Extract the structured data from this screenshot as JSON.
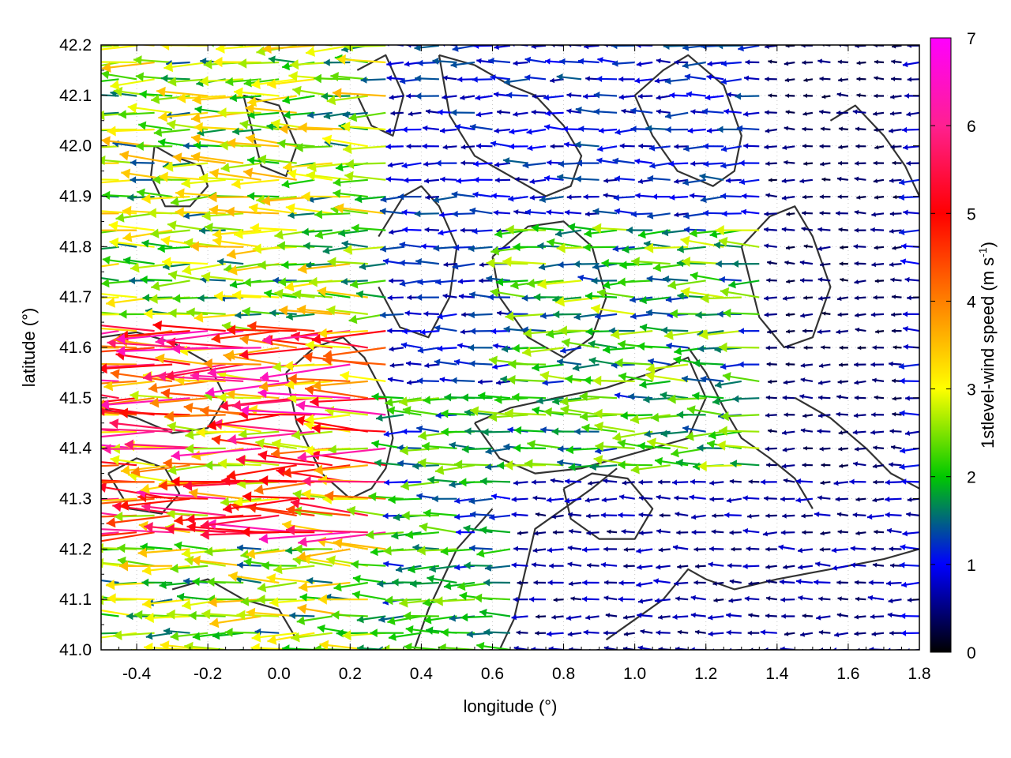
{
  "chart_data": {
    "type": "vector-field",
    "title": "",
    "xlabel": "longitude (°)",
    "ylabel": "latitude (°)",
    "xlim": [
      -0.5,
      1.8
    ],
    "ylim": [
      41.0,
      42.2
    ],
    "xticks": [
      -0.4,
      -0.2,
      0.0,
      0.2,
      0.4,
      0.6,
      0.8,
      1.0,
      1.2,
      1.4,
      1.6,
      1.8
    ],
    "xtick_labels": [
      "-0.4",
      "-0.2",
      "0.0",
      "0.2",
      "0.4",
      "0.6",
      "0.8",
      "1.0",
      "1.2",
      "1.4",
      "1.6",
      "1.8"
    ],
    "yticks": [
      41.0,
      41.1,
      41.2,
      41.3,
      41.4,
      41.5,
      41.6,
      41.7,
      41.8,
      41.9,
      42.0,
      42.1,
      42.2
    ],
    "ytick_labels": [
      "41.0",
      "41.1",
      "41.2",
      "41.3",
      "41.4",
      "41.5",
      "41.6",
      "41.7",
      "41.8",
      "41.9",
      "42.0",
      "42.1",
      "42.2"
    ],
    "grid": true,
    "colorbar": {
      "label_main": "1stlevel-wind speed (m s",
      "label_sup": "-1",
      "label_end": ")",
      "range": [
        0,
        7
      ],
      "ticks": [
        0,
        1,
        2,
        3,
        4,
        5,
        6,
        7
      ],
      "tick_labels": [
        "0",
        "1",
        "2",
        "3",
        "4",
        "5",
        "6",
        "7"
      ],
      "colormap": [
        "#000000",
        "#0000ff",
        "#00c800",
        "#ffff00",
        "#ff8000",
        "#ff0000",
        "#ff00ff"
      ]
    },
    "contour_color": "#333333",
    "vector_summary": {
      "predominant_direction": "westward",
      "regions": [
        {
          "lon": [
            -0.5,
            0.3
          ],
          "lat": [
            41.2,
            41.65
          ],
          "speed": 4.5
        },
        {
          "lon": [
            -0.5,
            0.3
          ],
          "lat": [
            41.65,
            42.2
          ],
          "speed": 2.5
        },
        {
          "lon": [
            -0.5,
            0.3
          ],
          "lat": [
            41.0,
            41.2
          ],
          "speed": 2.5
        },
        {
          "lon": [
            0.3,
            0.7
          ],
          "lat": [
            41.0,
            41.5
          ],
          "speed": 1.8
        },
        {
          "lon": [
            0.3,
            0.7
          ],
          "lat": [
            41.5,
            42.2
          ],
          "speed": 1.0
        },
        {
          "lon": [
            0.7,
            1.4
          ],
          "lat": [
            41.35,
            41.85
          ],
          "speed": 2.0
        },
        {
          "lon": [
            0.7,
            1.4
          ],
          "lat": [
            41.85,
            42.2
          ],
          "speed": 1.0
        },
        {
          "lon": [
            0.7,
            1.8
          ],
          "lat": [
            41.0,
            41.35
          ],
          "speed": 0.6
        },
        {
          "lon": [
            1.4,
            1.8
          ],
          "lat": [
            41.35,
            42.2
          ],
          "speed": 0.4
        }
      ]
    },
    "contours": [
      {
        "lon": [
          -0.35,
          -0.3,
          -0.22,
          -0.2,
          -0.25,
          -0.32,
          -0.36,
          -0.35
        ],
        "lat": [
          42.0,
          41.98,
          41.96,
          41.92,
          41.88,
          41.88,
          41.94,
          42.0
        ]
      },
      {
        "lon": [
          -0.5,
          -0.4,
          -0.3,
          -0.2,
          -0.15,
          -0.2,
          -0.3,
          -0.4,
          -0.5
        ],
        "lat": [
          41.62,
          41.63,
          41.61,
          41.57,
          41.5,
          41.44,
          41.43,
          41.46,
          41.48
        ]
      },
      {
        "lon": [
          -0.48,
          -0.4,
          -0.32,
          -0.28,
          -0.33,
          -0.42,
          -0.48
        ],
        "lat": [
          41.35,
          41.38,
          41.36,
          41.31,
          41.27,
          41.28,
          41.35
        ]
      },
      {
        "lon": [
          -0.1,
          0.0,
          0.05,
          0.02,
          -0.05,
          -0.1
        ],
        "lat": [
          42.1,
          42.08,
          42.0,
          41.94,
          41.96,
          42.1
        ]
      },
      {
        "lon": [
          0.02,
          0.1,
          0.18,
          0.24,
          0.3,
          0.32,
          0.3,
          0.26,
          0.2,
          0.12,
          0.05,
          0.02
        ],
        "lat": [
          41.55,
          41.6,
          41.62,
          41.58,
          41.5,
          41.42,
          41.36,
          41.32,
          41.3,
          41.35,
          41.45,
          41.55
        ]
      },
      {
        "lon": [
          0.28,
          0.35,
          0.4,
          0.45,
          0.5,
          0.48,
          0.42,
          0.34,
          0.28
        ],
        "lat": [
          41.82,
          41.9,
          41.92,
          41.88,
          41.8,
          41.7,
          41.62,
          41.64,
          41.72
        ]
      },
      {
        "lon": [
          0.22,
          0.3,
          0.35,
          0.32,
          0.26,
          0.22
        ],
        "lat": [
          42.15,
          42.18,
          42.1,
          42.02,
          42.04,
          42.1
        ]
      },
      {
        "lon": [
          0.45,
          0.55,
          0.65,
          0.72,
          0.8,
          0.85,
          0.82,
          0.75,
          0.65,
          0.55,
          0.48,
          0.45
        ],
        "lat": [
          42.18,
          42.16,
          42.12,
          42.1,
          42.04,
          41.98,
          41.92,
          41.9,
          41.94,
          41.98,
          42.06,
          42.18
        ]
      },
      {
        "lon": [
          0.6,
          0.7,
          0.8,
          0.88,
          0.92,
          0.88,
          0.8,
          0.7,
          0.62,
          0.6
        ],
        "lat": [
          41.78,
          41.84,
          41.85,
          41.8,
          41.7,
          41.62,
          41.58,
          41.62,
          41.7,
          41.78
        ]
      },
      {
        "lon": [
          0.55,
          0.65,
          0.78,
          0.92,
          1.05,
          1.15,
          1.2,
          1.15,
          1.05,
          0.95,
          0.85,
          0.72,
          0.62,
          0.55
        ],
        "lat": [
          41.45,
          41.48,
          41.5,
          41.52,
          41.55,
          41.58,
          41.5,
          41.42,
          41.4,
          41.38,
          41.36,
          41.35,
          41.38,
          41.45
        ]
      },
      {
        "lon": [
          0.8,
          0.88,
          0.98,
          1.05,
          1.0,
          0.9,
          0.82,
          0.8
        ],
        "lat": [
          41.32,
          41.35,
          41.34,
          41.28,
          41.22,
          41.22,
          41.26,
          41.32
        ]
      },
      {
        "lon": [
          1.0,
          1.08,
          1.15,
          1.25,
          1.3,
          1.28,
          1.22,
          1.12,
          1.05,
          1.0
        ],
        "lat": [
          42.1,
          42.15,
          42.18,
          42.12,
          42.02,
          41.95,
          41.92,
          41.95,
          42.02,
          42.1
        ]
      },
      {
        "lon": [
          1.3,
          1.38,
          1.45,
          1.5,
          1.55,
          1.5,
          1.42,
          1.35,
          1.3
        ],
        "lat": [
          41.8,
          41.86,
          41.88,
          41.82,
          41.72,
          41.62,
          41.6,
          41.66,
          41.8
        ]
      },
      {
        "lon": [
          1.55,
          1.62,
          1.7,
          1.76,
          1.8
        ],
        "lat": [
          42.05,
          42.08,
          42.02,
          41.96,
          41.9
        ]
      },
      {
        "lon": [
          1.45,
          1.55,
          1.65,
          1.72,
          1.8
        ],
        "lat": [
          41.5,
          41.46,
          41.4,
          41.35,
          41.32
        ]
      },
      {
        "lon": [
          0.92,
          1.0,
          1.08,
          1.15,
          1.2,
          1.28,
          1.4,
          1.55,
          1.7,
          1.8
        ],
        "lat": [
          41.02,
          41.06,
          41.1,
          41.16,
          41.14,
          41.12,
          41.14,
          41.16,
          41.18,
          41.2
        ]
      },
      {
        "lon": [
          0.62,
          0.66,
          0.68,
          0.7,
          0.72,
          0.8,
          0.88,
          0.95
        ],
        "lat": [
          41.0,
          41.06,
          41.12,
          41.18,
          41.24,
          41.28,
          41.32,
          41.36
        ]
      },
      {
        "lon": [
          1.15,
          1.2,
          1.25,
          1.3,
          1.38,
          1.45,
          1.5
        ],
        "lat": [
          41.6,
          41.55,
          41.48,
          41.42,
          41.38,
          41.34,
          41.28
        ]
      },
      {
        "lon": [
          0.38,
          0.42,
          0.46,
          0.5,
          0.55,
          0.6
        ],
        "lat": [
          41.0,
          41.08,
          41.14,
          41.2,
          41.24,
          41.28
        ]
      },
      {
        "lon": [
          -0.3,
          -0.2,
          -0.1,
          0.0,
          0.05
        ],
        "lat": [
          41.12,
          41.14,
          41.1,
          41.08,
          41.02
        ]
      }
    ]
  }
}
